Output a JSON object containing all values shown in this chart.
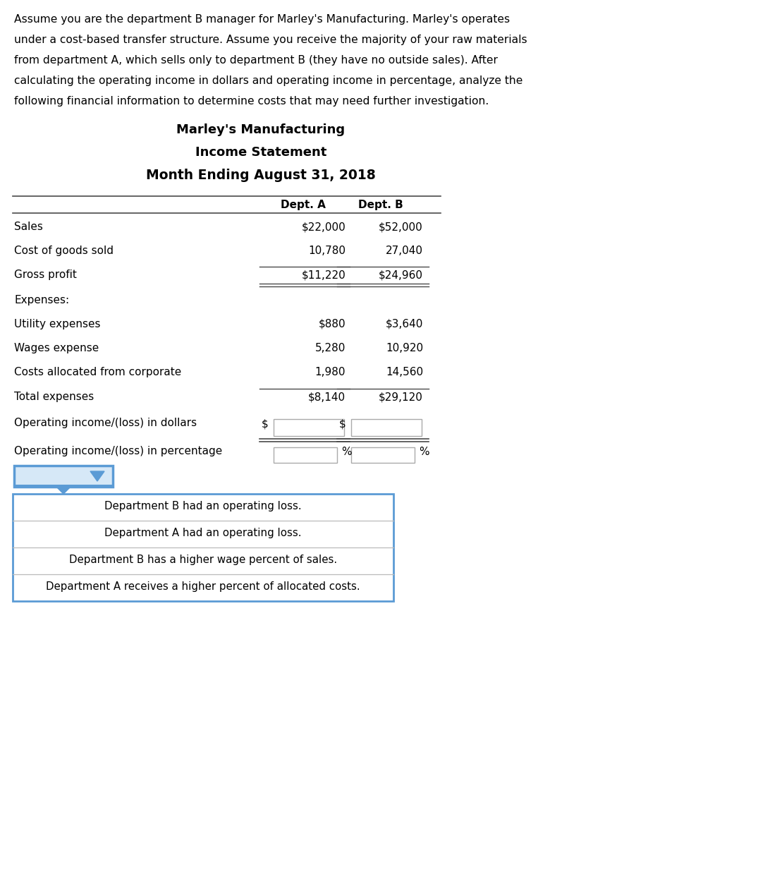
{
  "intro_lines": [
    "Assume you are the department B manager for Marley's Manufacturing. Marley's operates",
    "under a cost-based transfer structure. Assume you receive the majority of your raw materials",
    "from department A, which sells only to department B (they have no outside sales). After",
    "calculating the operating income in dollars and operating income in percentage, analyze the",
    "following financial information to determine costs that may need further investigation."
  ],
  "title1": "Marley's Manufacturing",
  "title2": "Income Statement",
  "title3": "Month Ending August 31, 2018",
  "col_headers": [
    "Dept. A",
    "Dept. B"
  ],
  "table_rows": [
    {
      "label": "Sales",
      "a": "$22,000",
      "b": "$52,000",
      "line_above": false,
      "double_line_below": false,
      "input_box": false,
      "pct_box": false
    },
    {
      "label": "Cost of goods sold",
      "a": "10,780",
      "b": "27,040",
      "line_above": false,
      "double_line_below": false,
      "input_box": false,
      "pct_box": false
    },
    {
      "label": "Gross profit",
      "a": "$11,220",
      "b": "$24,960",
      "line_above": true,
      "double_line_below": true,
      "input_box": false,
      "pct_box": false
    },
    {
      "label": "Expenses:",
      "a": "",
      "b": "",
      "line_above": false,
      "double_line_below": false,
      "input_box": false,
      "pct_box": false
    },
    {
      "label": "Utility expenses",
      "a": "$880",
      "b": "$3,640",
      "line_above": false,
      "double_line_below": false,
      "input_box": false,
      "pct_box": false
    },
    {
      "label": "Wages expense",
      "a": "5,280",
      "b": "10,920",
      "line_above": false,
      "double_line_below": false,
      "input_box": false,
      "pct_box": false
    },
    {
      "label": "Costs allocated from corporate",
      "a": "1,980",
      "b": "14,560",
      "line_above": false,
      "double_line_below": false,
      "input_box": false,
      "pct_box": false
    },
    {
      "label": "Total expenses",
      "a": "$8,140",
      "b": "$29,120",
      "line_above": true,
      "double_line_below": false,
      "input_box": false,
      "pct_box": false
    },
    {
      "label": "Operating income/(loss) in dollars",
      "a": "$",
      "b": "$",
      "line_above": false,
      "double_line_below": true,
      "input_box": true,
      "pct_box": false
    },
    {
      "label": "Operating income/(loss) in percentage",
      "a": "",
      "b": "",
      "line_above": false,
      "double_line_below": false,
      "input_box": false,
      "pct_box": true
    }
  ],
  "dropdown_options": [
    "Department B had an operating loss.",
    "Department A had an operating loss.",
    "Department B has a higher wage percent of sales.",
    "Department A receives a higher percent of allocated costs."
  ],
  "bg_color": "#ffffff",
  "text_color": "#000000",
  "line_color": "#4a4a4a",
  "input_border_color": "#aaaaaa",
  "dropdown_border_color": "#5b9bd5",
  "dropdown_bg_color": "#d6e8f7"
}
